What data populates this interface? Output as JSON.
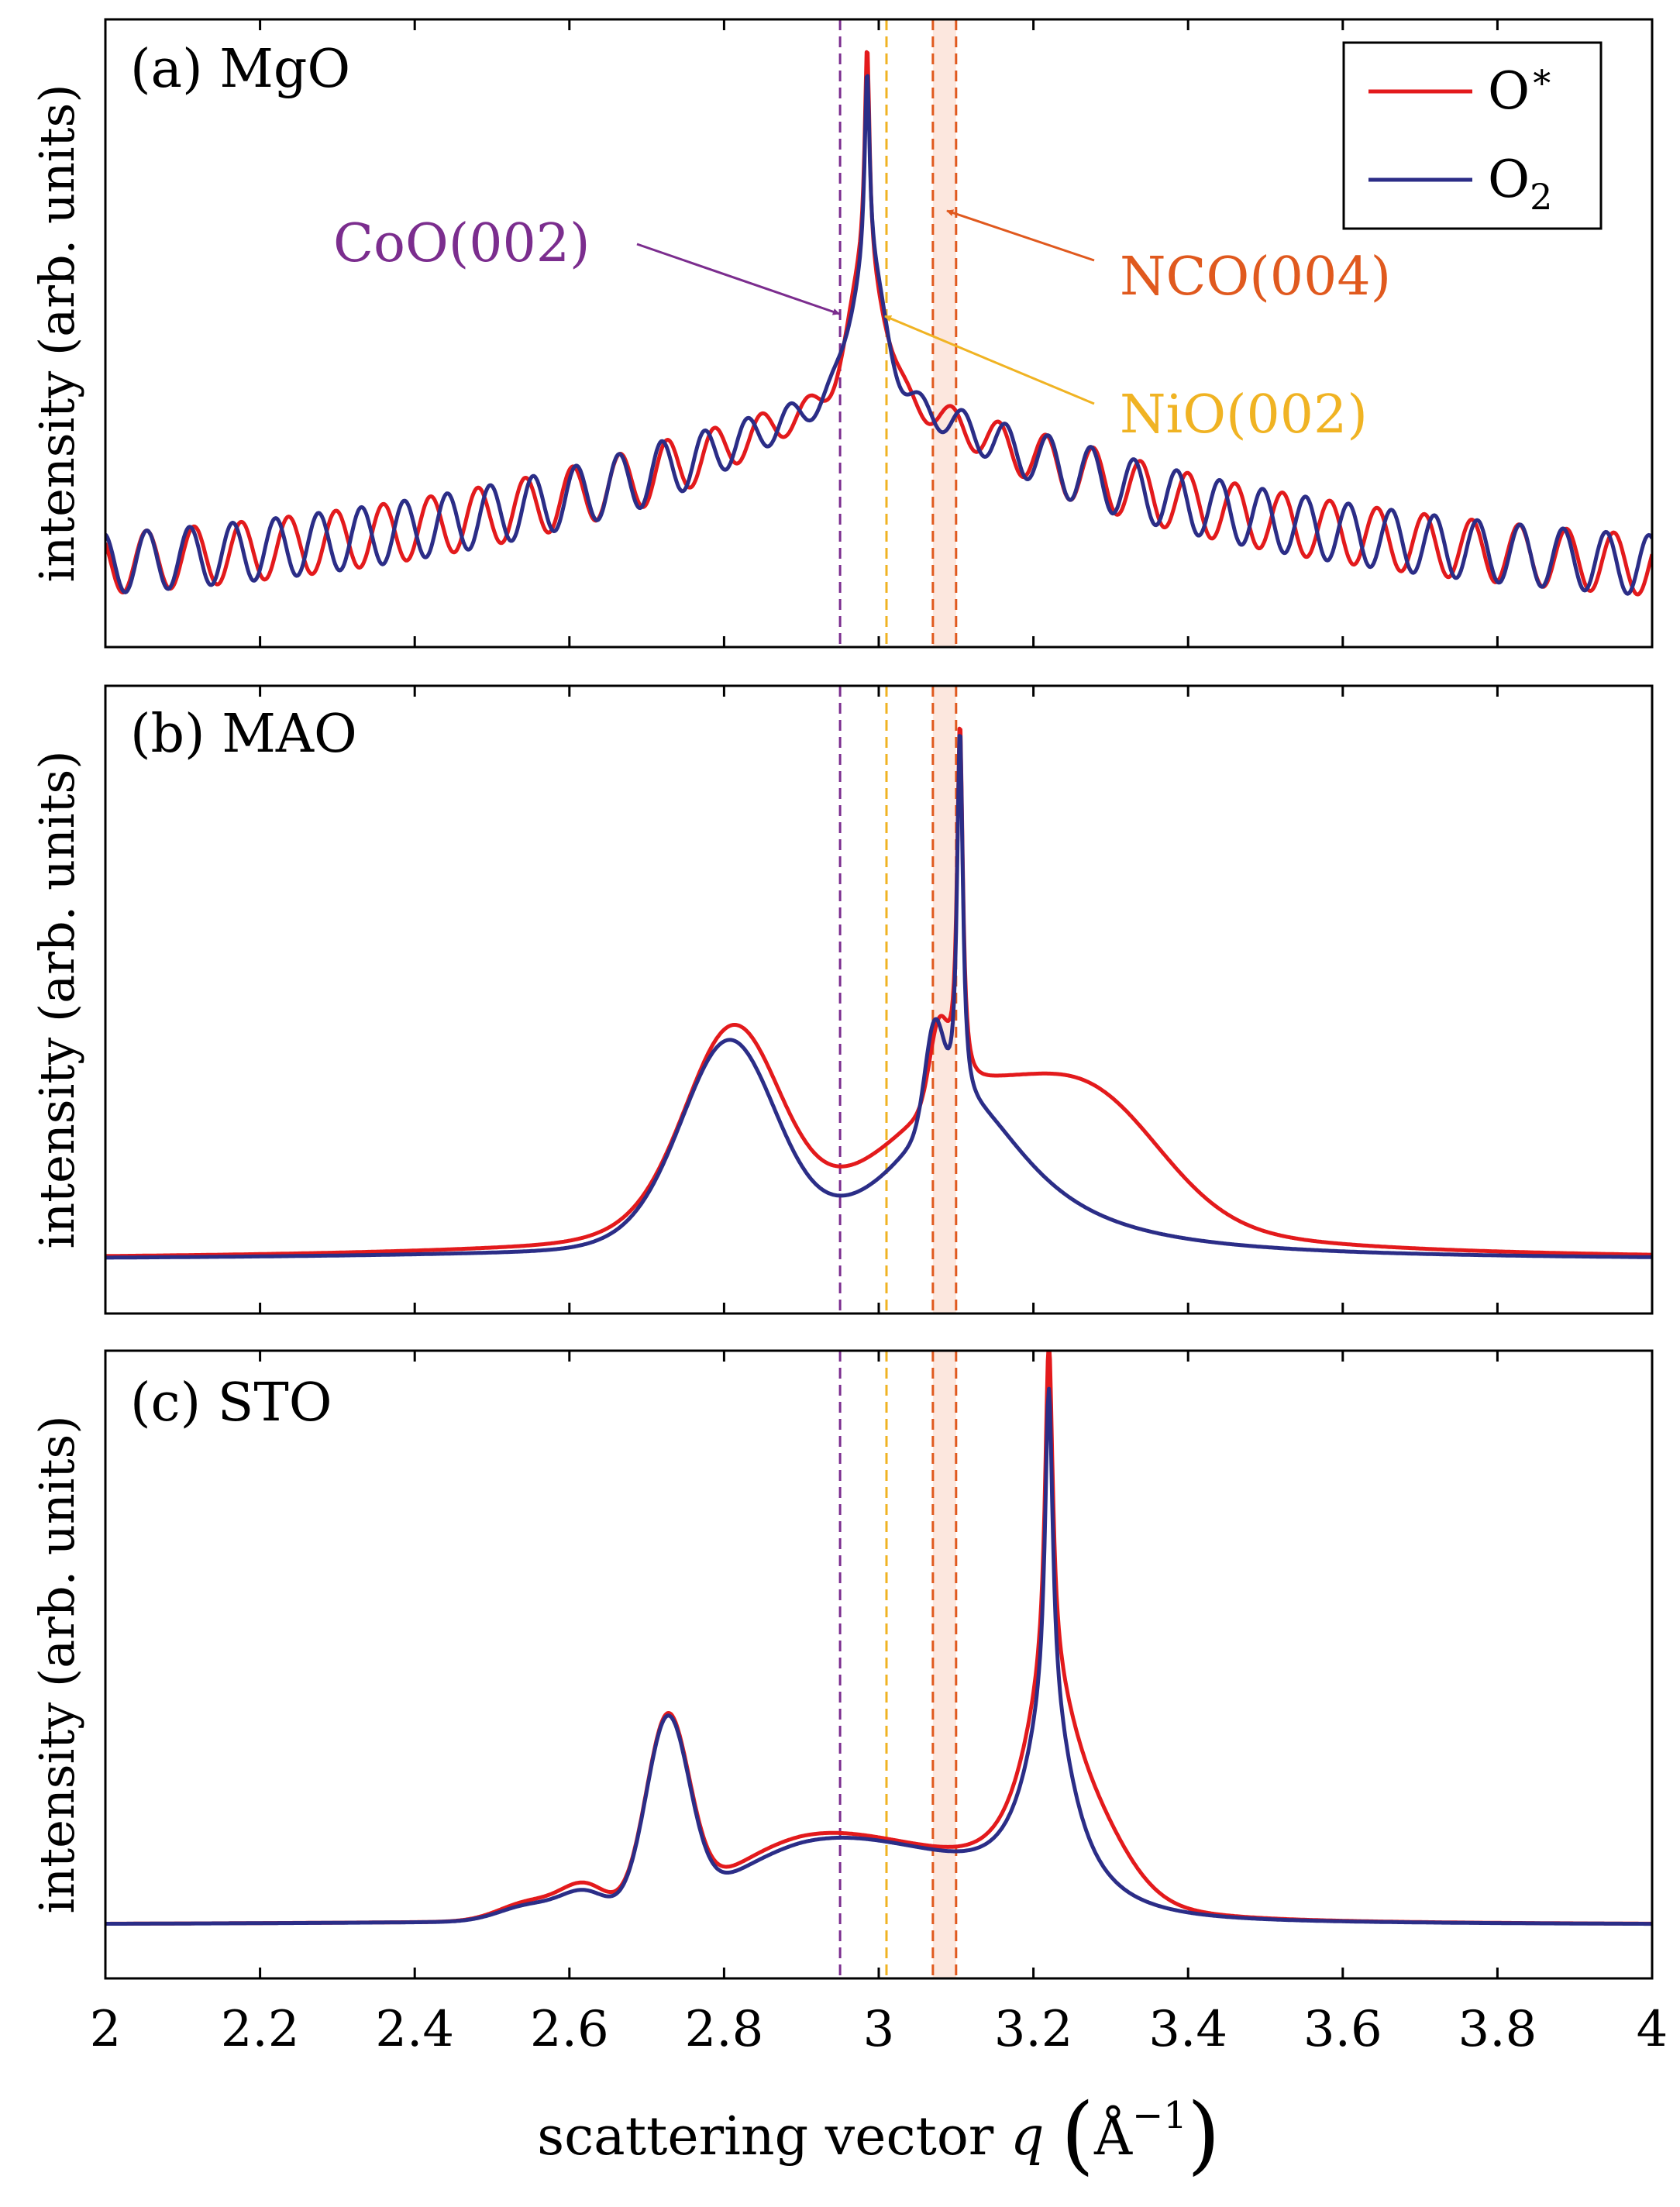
{
  "chart_data": {
    "type": "line",
    "x_axis": {
      "label": "scattering vector q (Å⁻¹)",
      "label_text": "scattering vector",
      "label_var": "q",
      "label_unit": "Å",
      "label_exp": "−1",
      "range": [
        2,
        4
      ],
      "ticks": [
        2,
        2.2,
        2.4,
        2.6,
        2.8,
        3,
        3.2,
        3.4,
        3.6,
        3.8,
        4
      ],
      "tick_labels": [
        "2",
        "2.2",
        "2.4",
        "2.6",
        "2.8",
        "3",
        "3.2",
        "3.4",
        "3.6",
        "3.8",
        "4"
      ]
    },
    "y_label": "intensity (arb. units)",
    "legend": {
      "position": "top-right (panel a)",
      "entries": [
        {
          "base": "O",
          "sup": "∗",
          "sub": "",
          "color": "#e31a1c"
        },
        {
          "base": "O",
          "sup": "",
          "sub": "2",
          "color": "#2b2d87"
        }
      ]
    },
    "reference_lines": [
      {
        "name": "CoO(002)",
        "q": 2.95,
        "color": "#7b2d8e"
      },
      {
        "name": "NiO(002)",
        "q": 3.01,
        "color": "#f0b323"
      },
      {
        "name": "NCO(004)",
        "q_range": [
          3.07,
          3.1
        ],
        "color": "#e0591e"
      }
    ],
    "annotations": [
      {
        "text": "CoO(002)",
        "points_to_q": 2.95,
        "color": "#7b2d8e"
      },
      {
        "text": "NiO(002)",
        "points_to_q": 3.01,
        "color": "#f0b323"
      },
      {
        "text": "NCO(004)",
        "points_to_q": 3.09,
        "color": "#e0591e"
      }
    ],
    "panels": [
      {
        "label": "(a) MgO",
        "substrate": "MgO",
        "ylim": [
          0,
          1
        ],
        "series": [
          {
            "name": "O*",
            "color": "#e31a1c",
            "model": {
              "type": "mgo",
              "peak_q": 2.985,
              "peak_height": 0.97,
              "fringe_period": 0.0612,
              "fringe_phase": 0.45
            }
          },
          {
            "name": "O2",
            "color": "#2b2d87",
            "model": {
              "type": "mgo",
              "peak_q": 2.985,
              "peak_height": 0.93,
              "fringe_period": 0.0555,
              "fringe_phase": 0.0
            }
          }
        ]
      },
      {
        "label": "(b) MAO",
        "substrate": "MAO",
        "ylim": [
          0,
          1
        ],
        "series": [
          {
            "name": "O*",
            "color": "#e31a1c",
            "model": {
              "baseline": 0.085,
              "peaks": [
                {
                  "q": 2.815,
                  "h": 0.275,
                  "w": 0.058,
                  "shape": "gauss"
                },
                {
                  "q": 2.76,
                  "h": 0.05,
                  "w": 0.07,
                  "shape": "gauss"
                },
                {
                  "q": 3.105,
                  "h": 0.58,
                  "w": 0.0045,
                  "shape": "lorentz"
                },
                {
                  "q": 3.078,
                  "h": 0.12,
                  "w": 0.012,
                  "shape": "gauss"
                },
                {
                  "q": 3.11,
                  "h": 0.24,
                  "w": 0.16,
                  "shape": "lorentz"
                },
                {
                  "q": 3.28,
                  "h": 0.16,
                  "w": 0.09,
                  "shape": "gauss"
                }
              ]
            }
          },
          {
            "name": "O2",
            "color": "#2b2d87",
            "model": {
              "baseline": 0.085,
              "peaks": [
                {
                  "q": 2.81,
                  "h": 0.275,
                  "w": 0.058,
                  "shape": "gauss"
                },
                {
                  "q": 2.76,
                  "h": 0.05,
                  "w": 0.07,
                  "shape": "gauss"
                },
                {
                  "q": 3.105,
                  "h": 0.6,
                  "w": 0.0045,
                  "shape": "lorentz"
                },
                {
                  "q": 3.072,
                  "h": 0.15,
                  "w": 0.012,
                  "shape": "gauss"
                },
                {
                  "q": 3.11,
                  "h": 0.24,
                  "w": 0.11,
                  "shape": "lorentz"
                }
              ]
            }
          }
        ]
      },
      {
        "label": "(c) STO",
        "substrate": "STO",
        "ylim": [
          0,
          1
        ],
        "series": [
          {
            "name": "O*",
            "color": "#e31a1c",
            "model": {
              "baseline": 0.085,
              "peaks": [
                {
                  "q": 2.727,
                  "h": 0.3,
                  "w": 0.028,
                  "shape": "gauss"
                },
                {
                  "q": 2.62,
                  "h": 0.05,
                  "w": 0.03,
                  "shape": "gauss"
                },
                {
                  "q": 2.55,
                  "h": 0.03,
                  "w": 0.04,
                  "shape": "gauss"
                },
                {
                  "q": 2.875,
                  "h": 0.05,
                  "w": 0.09,
                  "shape": "gauss"
                },
                {
                  "q": 3.22,
                  "h": 0.54,
                  "w": 0.006,
                  "shape": "lorentz"
                },
                {
                  "q": 3.22,
                  "h": 0.3,
                  "w": 0.045,
                  "shape": "lorentz"
                },
                {
                  "q": 3.27,
                  "h": 0.09,
                  "w": 0.05,
                  "shape": "gauss"
                },
                {
                  "q": 3.0,
                  "h": 0.1,
                  "w": 0.14,
                  "shape": "gauss"
                }
              ]
            }
          },
          {
            "name": "O2",
            "color": "#2b2d87",
            "model": {
              "baseline": 0.085,
              "peaks": [
                {
                  "q": 2.727,
                  "h": 0.3,
                  "w": 0.028,
                  "shape": "gauss"
                },
                {
                  "q": 2.62,
                  "h": 0.04,
                  "w": 0.03,
                  "shape": "gauss"
                },
                {
                  "q": 2.55,
                  "h": 0.025,
                  "w": 0.04,
                  "shape": "gauss"
                },
                {
                  "q": 2.88,
                  "h": 0.04,
                  "w": 0.09,
                  "shape": "gauss"
                },
                {
                  "q": 3.22,
                  "h": 0.52,
                  "w": 0.006,
                  "shape": "lorentz"
                },
                {
                  "q": 3.22,
                  "h": 0.3,
                  "w": 0.04,
                  "shape": "lorentz"
                },
                {
                  "q": 3.0,
                  "h": 0.1,
                  "w": 0.14,
                  "shape": "gauss"
                }
              ]
            }
          }
        ]
      }
    ]
  }
}
